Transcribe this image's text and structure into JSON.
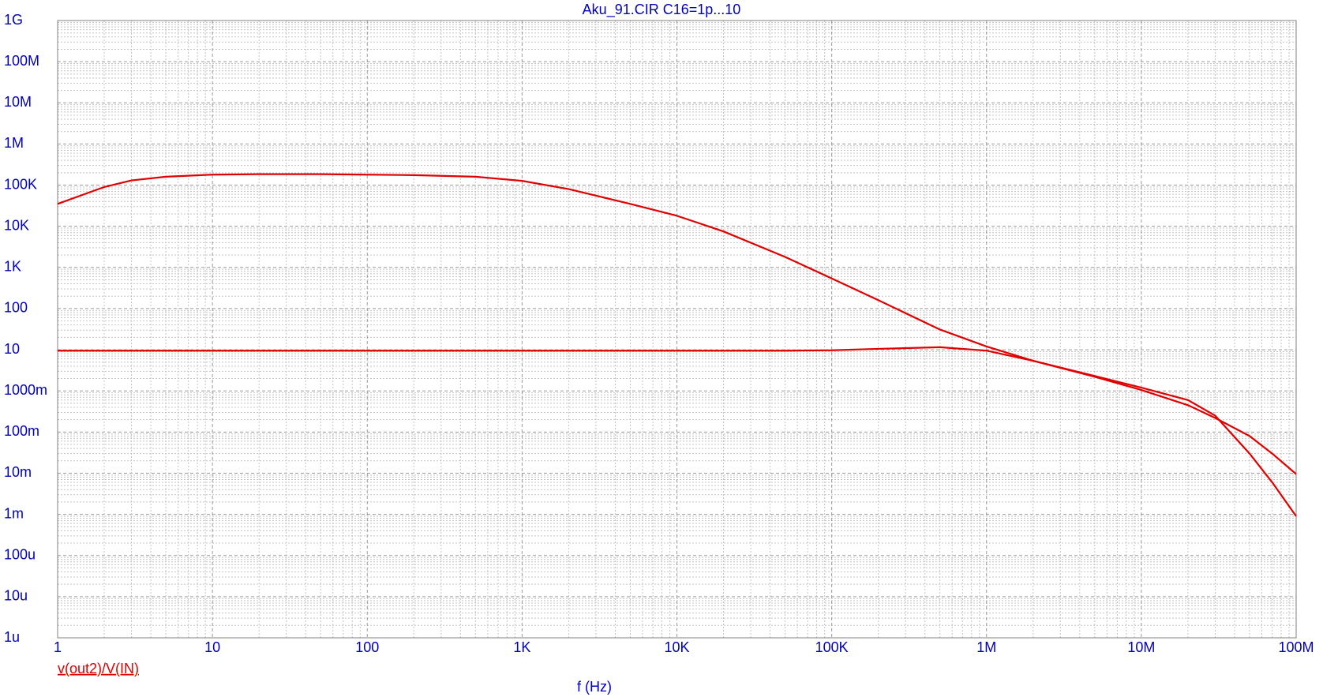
{
  "chart_data": {
    "type": "line",
    "title": "Aku_91.CIR C16=1p...10",
    "xlabel": "f (Hz)",
    "legend_label": "v(out2)/V(IN)",
    "xscale": "log",
    "yscale": "log",
    "grid": true,
    "minor_grid": true,
    "xlim": [
      1,
      100000000
    ],
    "ylim": [
      1e-06,
      1000000000
    ],
    "xticks": [
      1,
      10,
      100,
      {
        "value": 1000,
        "label": "1K"
      },
      {
        "value": 10000,
        "label": "10K"
      },
      {
        "value": 100000,
        "label": "100K"
      },
      {
        "value": 1000000,
        "label": "1M"
      },
      {
        "value": 10000000,
        "label": "10M"
      },
      {
        "value": 100000000,
        "label": "100M"
      }
    ],
    "yticks": [
      {
        "value": 1000000000,
        "label": "1G"
      },
      {
        "value": 100000000,
        "label": "100M"
      },
      {
        "value": 10000000,
        "label": "10M"
      },
      {
        "value": 1000000,
        "label": "1M"
      },
      {
        "value": 100000,
        "label": "100K"
      },
      {
        "value": 10000,
        "label": "10K"
      },
      {
        "value": 1000,
        "label": "1K"
      },
      100,
      10,
      {
        "value": 1,
        "label": "1000m"
      },
      {
        "value": 0.1,
        "label": "100m"
      },
      {
        "value": 0.01,
        "label": "10m"
      },
      {
        "value": 0.001,
        "label": "1m"
      },
      {
        "value": 0.0001,
        "label": "100u"
      },
      {
        "value": 1e-05,
        "label": "10u"
      },
      {
        "value": 1e-06,
        "label": "1u"
      }
    ],
    "x": [
      1,
      2,
      3,
      5,
      10,
      20,
      50,
      100,
      200,
      500,
      1000,
      2000,
      5000,
      10000,
      20000,
      50000,
      100000,
      200000,
      500000,
      1000000,
      2000000,
      5000000,
      10000000,
      20000000,
      30000000,
      50000000,
      70000000,
      100000000
    ],
    "series": [
      {
        "color": "#e00000",
        "values": [
          35000,
          90000,
          130000,
          160000,
          180000,
          185000,
          185000,
          180000,
          175000,
          160000,
          127000,
          80000,
          35000,
          18000,
          7500,
          1800,
          540,
          160,
          31,
          12,
          5.4,
          2.3,
          1.2,
          0.6,
          0.25,
          0.03,
          0.006,
          0.0009
        ]
      },
      {
        "color": "#e00000",
        "values": [
          9.5,
          9.5,
          9.5,
          9.5,
          9.5,
          9.5,
          9.5,
          9.5,
          9.5,
          9.5,
          9.5,
          9.5,
          9.5,
          9.5,
          9.5,
          9.5,
          9.7,
          10.5,
          11.5,
          9.5,
          5.4,
          2.2,
          1.05,
          0.45,
          0.22,
          0.08,
          0.03,
          0.0095
        ]
      }
    ]
  }
}
